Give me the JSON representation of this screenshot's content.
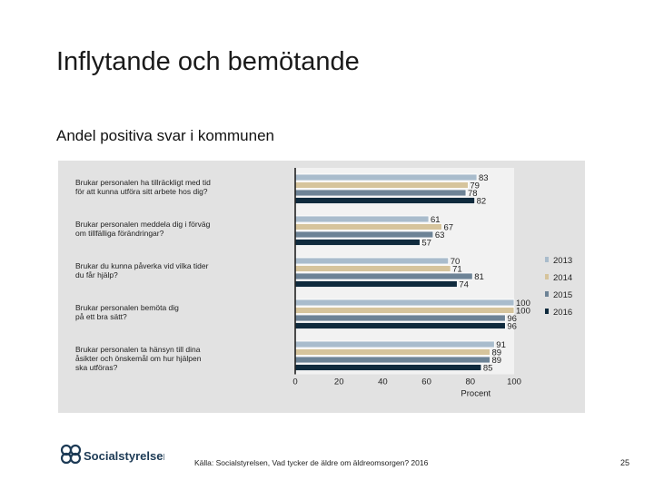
{
  "slide": {
    "title": "Inflytande och bemötande",
    "subtitle": "Andel positiva svar i kommunen",
    "source": "Källa: Socialstyrelsen, Vad tycker de äldre om äldreomsorgen? 2016",
    "page_number": "25",
    "logo_text": "Socialstyrelsen"
  },
  "colors": {
    "panel": "#e2e2e2",
    "2013": "#a9bccc",
    "2014": "#d6c49c",
    "2015": "#6d8396",
    "2016": "#0f2a3d",
    "logo": "#1c3a55"
  },
  "chart_data": {
    "type": "bar",
    "orientation": "horizontal",
    "categories": [
      [
        "Brukar personalen ha tillräckligt med tid",
        "för att kunna utföra sitt arbete hos dig?"
      ],
      [
        "Brukar personalen meddela dig i förväg",
        "om tillfälliga förändringar?"
      ],
      [
        "Brukar du kunna påverka vid vilka tider",
        "du får hjälp?"
      ],
      [
        "Brukar personalen bemöta dig",
        "på ett bra sätt?"
      ],
      [
        "Brukar personalen ta hänsyn till dina",
        "åsikter och önskemål om hur hjälpen",
        "ska utföras?"
      ]
    ],
    "series": [
      {
        "name": "2013",
        "values": [
          83,
          61,
          70,
          100,
          91
        ]
      },
      {
        "name": "2014",
        "values": [
          79,
          67,
          71,
          100,
          89
        ]
      },
      {
        "name": "2015",
        "values": [
          78,
          63,
          81,
          96,
          89
        ]
      },
      {
        "name": "2016",
        "values": [
          82,
          57,
          74,
          96,
          85
        ]
      }
    ],
    "xlabel": "Procent",
    "xlim": [
      0,
      100
    ],
    "xticks": [
      0,
      20,
      40,
      60,
      80,
      100
    ],
    "legend": "right",
    "grid": false
  }
}
